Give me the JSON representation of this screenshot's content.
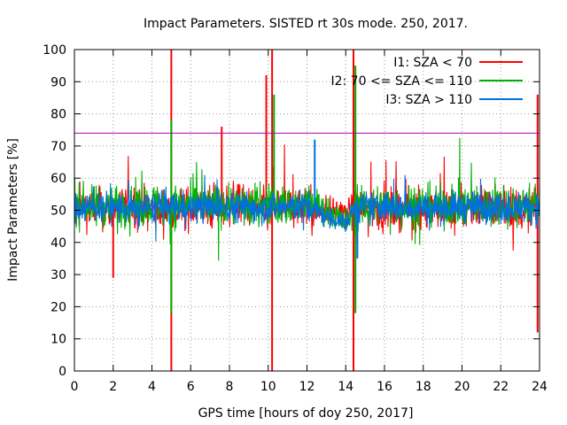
{
  "chart_data": {
    "type": "line",
    "title": "Impact Parameters. SISTED rt 30s mode. 250, 2017.",
    "xlabel": "GPS time [hours of doy 250, 2017]",
    "ylabel": "Impact Parameters [%]",
    "xlim": [
      0,
      24
    ],
    "ylim": [
      0,
      100
    ],
    "xticks": [
      "0",
      "2",
      "4",
      "6",
      "8",
      "10",
      "12",
      "14",
      "16",
      "18",
      "20",
      "22",
      "24"
    ],
    "yticks": [
      "0",
      "10",
      "20",
      "30",
      "40",
      "50",
      "60",
      "70",
      "80",
      "90",
      "100"
    ],
    "grid": true,
    "legend_position": "top-right",
    "reference_line": {
      "y": 74,
      "color": "#b000b0"
    },
    "series": [
      {
        "name": "I1: SZA < 70",
        "color": "#ff0000",
        "x": [
          0,
          1,
          2,
          3,
          4,
          5,
          6,
          7,
          8,
          9,
          10,
          11,
          12,
          13,
          14,
          14.5,
          15,
          16,
          17,
          18,
          19,
          20,
          21,
          22,
          23,
          24
        ],
        "y": [
          50,
          51,
          50,
          52,
          50,
          50,
          51,
          50,
          52,
          51,
          50,
          51,
          51,
          50,
          49,
          50,
          51,
          50,
          51,
          50,
          51,
          50,
          52,
          51,
          50,
          51
        ],
        "spikes": [
          [
            5.0,
            100
          ],
          [
            5.0,
            0
          ],
          [
            7.6,
            76
          ],
          [
            9.9,
            92
          ],
          [
            10.2,
            100
          ],
          [
            10.2,
            0
          ],
          [
            14.4,
            100
          ],
          [
            14.4,
            0
          ],
          [
            23.9,
            86
          ],
          [
            23.9,
            12
          ],
          [
            2.0,
            29
          ]
        ]
      },
      {
        "name": "I2: 70 <= SZA <= 110",
        "color": "#00b000",
        "x": [
          0,
          1,
          2,
          3,
          4,
          5,
          6,
          7,
          8,
          9,
          10,
          11,
          12,
          12.5,
          13,
          13.5,
          14,
          14.5,
          15,
          16,
          17,
          18,
          19,
          20,
          21,
          22,
          23,
          24
        ],
        "y": [
          52,
          51,
          52,
          51,
          52,
          51,
          52,
          51,
          52,
          51,
          52,
          51,
          52,
          52,
          50,
          48,
          46,
          50,
          51,
          52,
          51,
          52,
          51,
          52,
          51,
          52,
          51,
          52
        ],
        "spikes": [
          [
            5.0,
            78
          ],
          [
            5.0,
            18
          ],
          [
            10.3,
            86
          ],
          [
            14.5,
            95
          ],
          [
            14.5,
            18
          ]
        ]
      },
      {
        "name": "I3: SZA > 110",
        "color": "#0070e0",
        "x": [
          0,
          1,
          2,
          3,
          4,
          5,
          6,
          7,
          8,
          9,
          10,
          11,
          12,
          12.5,
          13,
          13.5,
          14,
          14.5,
          15,
          16,
          17,
          18,
          19,
          20,
          21,
          22,
          23,
          24
        ],
        "y": [
          51,
          51,
          51,
          50,
          51,
          51,
          51,
          51,
          51,
          51,
          51,
          51,
          51,
          50,
          48,
          47,
          46,
          51,
          51,
          51,
          51,
          51,
          51,
          51,
          51,
          51,
          51,
          51
        ],
        "spikes": [
          [
            12.4,
            72
          ],
          [
            14.6,
            35
          ]
        ]
      }
    ]
  }
}
